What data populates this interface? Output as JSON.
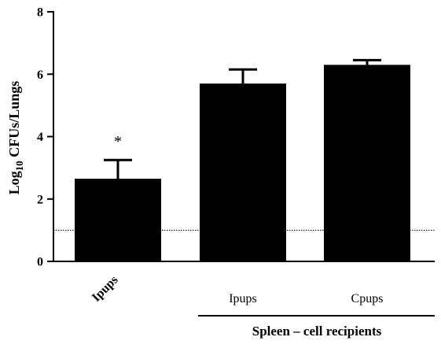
{
  "chart_data": {
    "type": "bar",
    "title": "",
    "ylabel_base": "Log",
    "ylabel_subscript": "10",
    "ylabel_rest": " CFUs/Lungs",
    "xlabel": "",
    "ylim": [
      0,
      8
    ],
    "yticks": [
      0,
      2,
      4,
      6,
      8
    ],
    "ytick_labels": [
      "0",
      "2",
      "4",
      "6",
      "8"
    ],
    "categories": [
      "Ipups",
      "Ipups",
      "Cpups"
    ],
    "values": [
      2.65,
      5.7,
      6.3
    ],
    "error": [
      0.6,
      0.45,
      0.15
    ],
    "annotations": [
      "*",
      "",
      ""
    ],
    "bar_color": "#000000",
    "detection_limit": 1.0,
    "group_label": "Spleen – cell recipients",
    "grid": false,
    "legend": "none"
  }
}
